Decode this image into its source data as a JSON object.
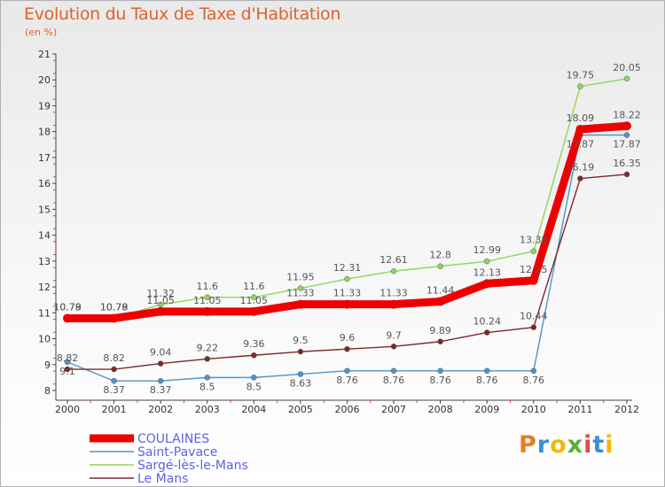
{
  "header": {
    "title": "Evolution du Taux de Taxe d'Habitation",
    "subtitle": "(en %)"
  },
  "logo": {
    "text": "Proxiti",
    "letters": [
      "P",
      "r",
      "o",
      "x",
      "i",
      "t",
      "i"
    ],
    "colors": [
      "#e67e22",
      "#3b8fd6",
      "#f2b705",
      "#5aaf3c",
      "#e74c3c",
      "#3b8fd6",
      "#f2b705"
    ]
  },
  "chart_data": {
    "type": "line",
    "x": [
      "2000",
      "2001",
      "2002",
      "2003",
      "2004",
      "2005",
      "2006",
      "2007",
      "2008",
      "2009",
      "2010",
      "2011",
      "2012"
    ],
    "ylim": [
      8,
      21
    ],
    "yticks": [
      8,
      9,
      10,
      11,
      12,
      13,
      14,
      15,
      16,
      17,
      18,
      19,
      20,
      21
    ],
    "grid": false,
    "legend": "bottom-left",
    "series": [
      {
        "name": "COULAINES",
        "color": "#ee0000",
        "values": [
          10.79,
          10.79,
          11.05,
          11.05,
          11.05,
          11.33,
          11.33,
          11.33,
          11.44,
          12.13,
          12.25,
          18.09,
          18.22
        ],
        "labels": [
          "10.79",
          "10.79",
          "11.05",
          "11.05",
          "11.05",
          "11.33",
          "11.33",
          "11.33",
          "11.44",
          "12.13",
          "12.25",
          "18.09",
          "18.22"
        ]
      },
      {
        "name": "Saint-Pavace",
        "color": "#4f94c8",
        "values": [
          9.1,
          8.37,
          8.37,
          8.5,
          8.5,
          8.63,
          8.76,
          8.76,
          8.76,
          8.76,
          8.76,
          17.87,
          17.87
        ],
        "labels": [
          "9.1",
          "8.37",
          "8.37",
          "8.5",
          "8.5",
          "8.63",
          "8.76",
          "8.76",
          "8.76",
          "8.76",
          "8.76",
          "17.87",
          "17.87"
        ]
      },
      {
        "name": "Sargé-lès-le-Mans",
        "color": "#8fd65a",
        "values": [
          10.78,
          10.78,
          11.32,
          11.6,
          11.6,
          11.95,
          12.31,
          12.61,
          12.8,
          12.99,
          13.38,
          19.75,
          20.05
        ],
        "labels": [
          "10.78",
          "10.78",
          "11.32",
          "11.6",
          "11.6",
          "11.95",
          "12.31",
          "12.61",
          "12.8",
          "12.99",
          "13.38",
          "19.75",
          "20.05"
        ]
      },
      {
        "name": "Le Mans",
        "color": "#7a2a2a",
        "values": [
          8.82,
          8.82,
          9.04,
          9.22,
          9.36,
          9.5,
          9.6,
          9.7,
          9.89,
          10.24,
          10.44,
          16.19,
          16.35
        ],
        "labels": [
          "8.82",
          "8.82",
          "9.04",
          "9.22",
          "9.36",
          "9.5",
          "9.6",
          "9.7",
          "9.89",
          "10.24",
          "10.44",
          "16.19",
          "16.35"
        ]
      }
    ]
  }
}
